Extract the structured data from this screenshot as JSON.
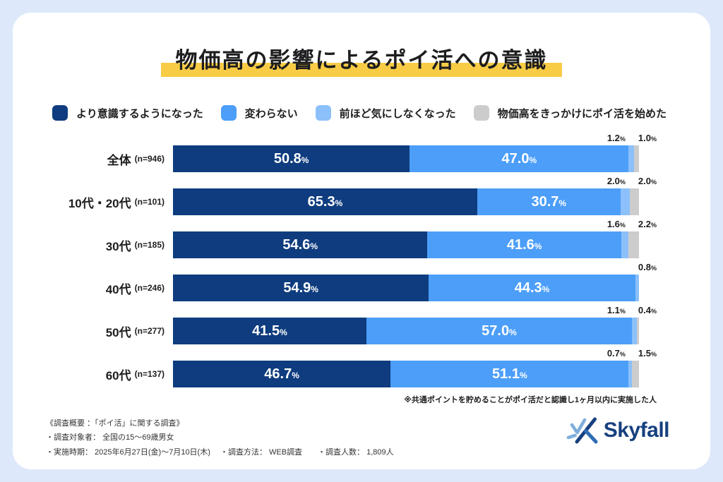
{
  "title": "物価高の影響によるポイ活への意識",
  "legend": {
    "items": [
      {
        "label": "より意識するようになった",
        "color": "#0E3C7E"
      },
      {
        "label": "変わらない",
        "color": "#4C9EF8"
      },
      {
        "label": "前ほど気にしなくなった",
        "color": "#8CC0FA"
      },
      {
        "label": "物価高をきっかけにポイ活を始めた",
        "color": "#CCCCCC"
      }
    ]
  },
  "chart_data": {
    "type": "bar",
    "stacked": true,
    "orientation": "horizontal",
    "unit": "%",
    "xlim": [
      0,
      100
    ],
    "title": "物価高の影響によるポイ活への意識",
    "series_names": [
      "より意識するようになった",
      "変わらない",
      "前ほど気にしなくなった",
      "物価高をきっかけにポイ活を始めた"
    ],
    "rows": [
      {
        "label": "全体",
        "n_label": "(n=946)",
        "values": [
          50.8,
          47.0,
          1.2,
          1.0
        ],
        "bar_labels": [
          "50.8",
          "47.0"
        ],
        "small_labels": [
          "1.2",
          "1.0"
        ]
      },
      {
        "label": "10代・20代",
        "n_label": "(n=101)",
        "values": [
          65.3,
          30.7,
          2.0,
          2.0
        ],
        "bar_labels": [
          "65.3",
          "30.7"
        ],
        "small_labels": [
          "2.0",
          "2.0"
        ]
      },
      {
        "label": "30代",
        "n_label": "(n=185)",
        "values": [
          54.6,
          41.6,
          1.6,
          2.2
        ],
        "bar_labels": [
          "54.6",
          "41.6"
        ],
        "small_labels": [
          "1.6",
          "2.2"
        ]
      },
      {
        "label": "40代",
        "n_label": "(n=246)",
        "values": [
          54.9,
          44.3,
          0.8,
          0.0
        ],
        "bar_labels": [
          "54.9",
          "44.3"
        ],
        "small_labels": [
          "0.8"
        ]
      },
      {
        "label": "50代",
        "n_label": "(n=277)",
        "values": [
          41.5,
          57.0,
          1.1,
          0.4
        ],
        "bar_labels": [
          "41.5",
          "57.0"
        ],
        "small_labels": [
          "1.1",
          "0.4"
        ]
      },
      {
        "label": "60代",
        "n_label": "(n=137)",
        "values": [
          46.7,
          51.1,
          0.7,
          1.5
        ],
        "bar_labels": [
          "46.7",
          "51.1"
        ],
        "small_labels": [
          "0.7",
          "1.5"
        ]
      }
    ]
  },
  "footnote": "※共通ポイントを貯めることがポイ活だと認識し1ヶ月以内に実施した人",
  "survey": {
    "lines": [
      "《調査概要 ：「ポイ活」に関する調査》",
      "・調査対象者： 全国の15〜69歳男女",
      "・実施時期： 2025年6月27日(金)〜7月10日(木)　 ・調査方法： WEB調査　　・調査人数： 1,809人"
    ]
  },
  "logo": {
    "text": "Skyfall"
  },
  "colors": {
    "background": "#DDE8FA",
    "card": "#FFFFFF",
    "highlight_yellow": "#F9CC46",
    "navy": "#0E3C7E",
    "blue": "#4C9EF8",
    "light_blue": "#8CC0FA",
    "gray": "#CCCCCC",
    "logo_navy": "#16407F"
  }
}
